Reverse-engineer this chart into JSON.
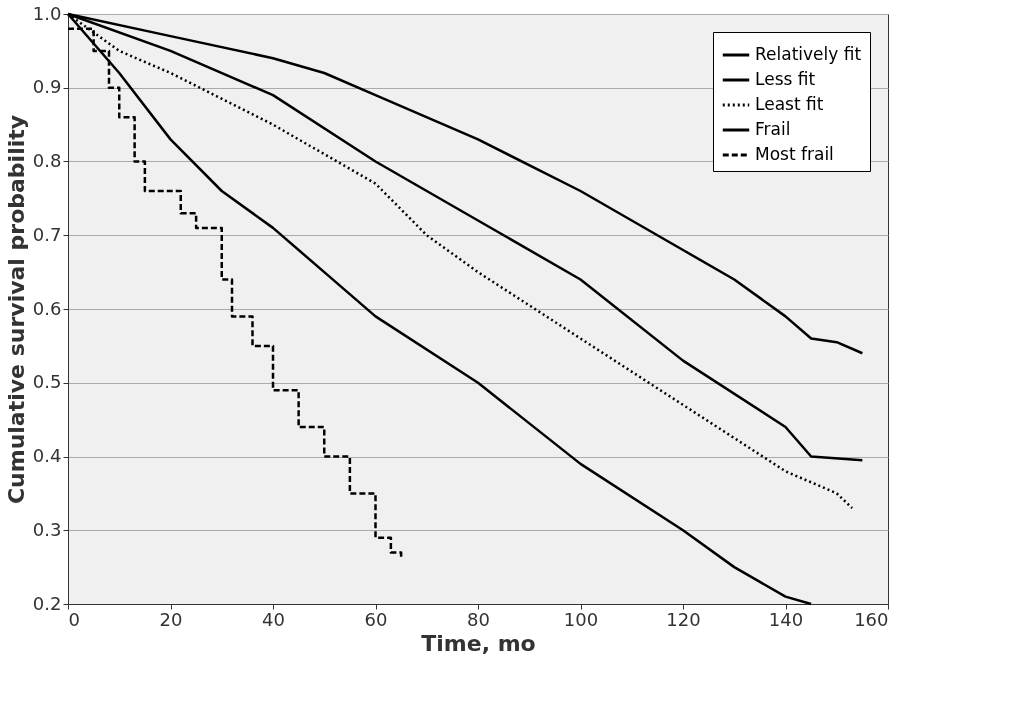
{
  "chart_data": {
    "type": "line",
    "xlabel": "Time, mo",
    "ylabel": "Cumulative survival probability",
    "xlim": [
      0,
      160
    ],
    "xticks": [
      0,
      20,
      40,
      60,
      80,
      100,
      120,
      140,
      160
    ],
    "ylim": [
      0.2,
      1.0
    ],
    "yticks": [
      0.2,
      0.3,
      0.4,
      0.5,
      0.6,
      0.7,
      0.8,
      0.9,
      {
        "value": 1.0,
        "label": "1.0"
      }
    ],
    "grid": "y",
    "legend": "top right",
    "marker": "none",
    "series": [
      {
        "name": "Relatively fit",
        "color": "#000000",
        "line_style": "solid",
        "x": [
          0,
          20,
          40,
          50,
          60,
          80,
          100,
          110,
          120,
          130,
          140,
          145,
          150,
          155
        ],
        "values": [
          1.0,
          0.97,
          0.94,
          0.92,
          0.89,
          0.83,
          0.76,
          0.72,
          0.68,
          0.64,
          0.59,
          0.56,
          0.555,
          0.54
        ]
      },
      {
        "name": "Less fit",
        "color": "#000000",
        "line_style": "solid",
        "x": [
          0,
          20,
          40,
          60,
          80,
          100,
          120,
          140,
          145,
          155
        ],
        "values": [
          1.0,
          0.95,
          0.89,
          0.8,
          0.72,
          0.64,
          0.53,
          0.44,
          0.4,
          0.395
        ]
      },
      {
        "name": "Least fit",
        "color": "#000000",
        "line_style": "dotted",
        "x": [
          0,
          10,
          20,
          40,
          60,
          70,
          80,
          100,
          120,
          140,
          150,
          153
        ],
        "values": [
          1.0,
          0.95,
          0.92,
          0.85,
          0.77,
          0.7,
          0.65,
          0.56,
          0.47,
          0.38,
          0.35,
          0.33
        ]
      },
      {
        "name": "Frail",
        "color": "#000000",
        "line_style": "solid",
        "x": [
          0,
          10,
          20,
          30,
          40,
          50,
          60,
          80,
          100,
          120,
          130,
          140,
          145
        ],
        "values": [
          1.0,
          0.92,
          0.83,
          0.76,
          0.71,
          0.65,
          0.59,
          0.5,
          0.39,
          0.3,
          0.25,
          0.21,
          0.2
        ]
      },
      {
        "name": "Most frail",
        "type": "step",
        "color": "#000000",
        "line_style": "dashed",
        "x": [
          0,
          5,
          8,
          10,
          13,
          15,
          22,
          25,
          30,
          32,
          36,
          40,
          45,
          50,
          55,
          60,
          63,
          65
        ],
        "values": [
          0.98,
          0.95,
          0.9,
          0.86,
          0.8,
          0.76,
          0.73,
          0.71,
          0.64,
          0.59,
          0.55,
          0.49,
          0.44,
          0.4,
          0.35,
          0.29,
          0.27,
          0.26
        ]
      }
    ]
  }
}
